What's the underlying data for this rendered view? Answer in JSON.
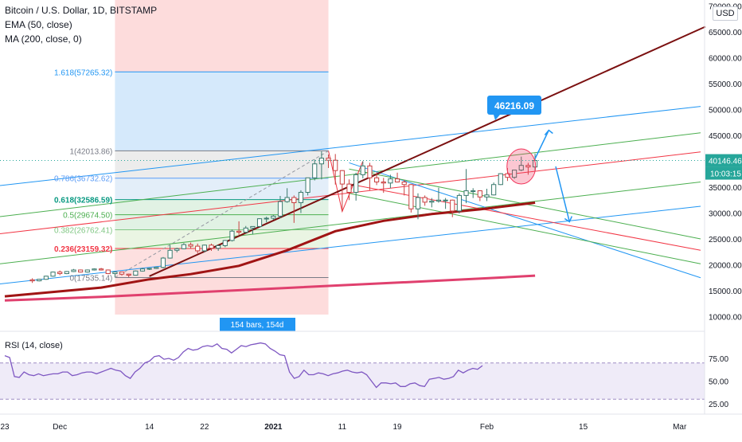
{
  "header": {
    "symbol_title": "Bitcoin / U.S. Dollar, 1D, BITSTAMP",
    "ema_label": "EMA (50, close)",
    "ma_label": "MA (200, close, 0)",
    "currency": "USD"
  },
  "price_axis": {
    "ticks": [
      "70000.00",
      "65000.00",
      "60000.00",
      "55000.00",
      "50000.00",
      "45000.00",
      "40000.00",
      "35000.00",
      "30000.00",
      "25000.00",
      "20000.00",
      "15000.00",
      "10000.00"
    ],
    "current_price": "40146.46",
    "countdown": "10:03:15"
  },
  "time_axis": {
    "ticks": [
      "23",
      "Dec",
      "14",
      "22",
      "2021",
      "11",
      "19",
      "Feb",
      "15",
      "Mar"
    ]
  },
  "fib_levels": [
    {
      "label": "1.618(57265.32)",
      "color": "#2196f3"
    },
    {
      "label": "1(42013.86)",
      "color": "#787b86"
    },
    {
      "label": "0.786(36732.62)",
      "color": "#5b9cf6"
    },
    {
      "label": "0.618(32586.59)",
      "color": "#089981"
    },
    {
      "label": "0.5(29674.50)",
      "color": "#4caf50"
    },
    {
      "label": "0.382(26762.41)",
      "color": "#81c784"
    },
    {
      "label": "0.236(23159.32)",
      "color": "#f23645"
    },
    {
      "label": "0(17535.14)",
      "color": "#787b86"
    }
  ],
  "annotations": {
    "target_label": "46216.09",
    "bars_label": "154 bars, 154d"
  },
  "rsi": {
    "label": "RSI (14, close)",
    "ticks": [
      "75.00",
      "50.00",
      "25.00"
    ],
    "values": [
      78,
      76,
      55,
      54,
      60,
      57,
      56,
      58,
      56,
      57,
      58,
      58,
      60,
      60,
      56,
      57,
      59,
      60,
      60,
      58,
      60,
      62,
      64,
      62,
      61,
      56,
      53,
      60,
      64,
      70,
      72,
      77,
      78,
      74,
      75,
      73,
      76,
      82,
      86,
      84,
      85,
      88,
      89,
      88,
      91,
      86,
      85,
      81,
      85,
      89,
      88,
      90,
      91,
      92,
      91,
      86,
      83,
      79,
      78,
      60,
      53,
      55,
      62,
      57,
      57,
      59,
      58,
      56,
      58,
      59,
      61,
      62,
      60,
      59,
      60,
      57,
      50,
      43,
      48,
      48,
      47,
      48,
      44,
      44,
      47,
      48,
      45,
      44,
      52,
      53,
      54,
      52,
      53,
      55,
      62,
      59,
      62,
      64,
      63,
      67
    ]
  },
  "chart_data": {
    "type": "candlestick",
    "title": "Bitcoin / U.S. Dollar, 1D, BITSTAMP",
    "x_range": [
      "2020-11-23",
      "2021-03-07"
    ],
    "ylim": [
      8000,
      70000
    ],
    "candles": [
      {
        "date": "2020-11-27",
        "o": 17100,
        "h": 17400,
        "l": 16500,
        "c": 16900
      },
      {
        "date": "2020-11-28",
        "o": 16900,
        "h": 17300,
        "l": 16800,
        "c": 17200
      },
      {
        "date": "2020-11-29",
        "o": 17200,
        "h": 17900,
        "l": 17100,
        "c": 17800
      },
      {
        "date": "2020-11-30",
        "o": 17800,
        "h": 18700,
        "l": 17700,
        "c": 18600
      },
      {
        "date": "2020-12-01",
        "o": 18600,
        "h": 18900,
        "l": 18000,
        "c": 18300
      },
      {
        "date": "2020-12-02",
        "o": 18300,
        "h": 18800,
        "l": 18200,
        "c": 18700
      },
      {
        "date": "2020-12-03",
        "o": 18700,
        "h": 19200,
        "l": 18600,
        "c": 19000
      },
      {
        "date": "2020-12-04",
        "o": 19000,
        "h": 19100,
        "l": 18500,
        "c": 18600
      },
      {
        "date": "2020-12-05",
        "o": 18600,
        "h": 19100,
        "l": 18500,
        "c": 19000
      },
      {
        "date": "2020-12-06",
        "o": 19000,
        "h": 19300,
        "l": 18900,
        "c": 19200
      },
      {
        "date": "2020-12-07",
        "o": 19200,
        "h": 19400,
        "l": 18900,
        "c": 19000
      },
      {
        "date": "2020-12-08",
        "o": 19000,
        "h": 19100,
        "l": 18200,
        "c": 18300
      },
      {
        "date": "2020-12-09",
        "o": 18300,
        "h": 18700,
        "l": 17600,
        "c": 18600
      },
      {
        "date": "2020-12-10",
        "o": 18600,
        "h": 18600,
        "l": 17900,
        "c": 18200
      },
      {
        "date": "2020-12-11",
        "o": 18200,
        "h": 18300,
        "l": 17600,
        "c": 18000
      },
      {
        "date": "2020-12-12",
        "o": 18000,
        "h": 18900,
        "l": 18000,
        "c": 18800
      },
      {
        "date": "2020-12-13",
        "o": 18800,
        "h": 19400,
        "l": 18700,
        "c": 19200
      },
      {
        "date": "2020-12-14",
        "o": 19200,
        "h": 19400,
        "l": 19000,
        "c": 19300
      },
      {
        "date": "2020-12-15",
        "o": 19300,
        "h": 19600,
        "l": 19200,
        "c": 19500
      },
      {
        "date": "2020-12-16",
        "o": 19500,
        "h": 21500,
        "l": 19300,
        "c": 21300
      },
      {
        "date": "2020-12-17",
        "o": 21300,
        "h": 23800,
        "l": 21200,
        "c": 22800
      },
      {
        "date": "2020-12-18",
        "o": 22800,
        "h": 23300,
        "l": 22400,
        "c": 23100
      },
      {
        "date": "2020-12-19",
        "o": 23100,
        "h": 24200,
        "l": 23000,
        "c": 23900
      },
      {
        "date": "2020-12-20",
        "o": 23900,
        "h": 24300,
        "l": 23100,
        "c": 23600
      },
      {
        "date": "2020-12-21",
        "o": 23600,
        "h": 24100,
        "l": 22200,
        "c": 22700
      },
      {
        "date": "2020-12-22",
        "o": 22700,
        "h": 23900,
        "l": 22400,
        "c": 23800
      },
      {
        "date": "2020-12-23",
        "o": 23800,
        "h": 24100,
        "l": 22700,
        "c": 23200
      },
      {
        "date": "2020-12-24",
        "o": 23200,
        "h": 23800,
        "l": 22700,
        "c": 23700
      },
      {
        "date": "2020-12-25",
        "o": 23700,
        "h": 24800,
        "l": 23400,
        "c": 24700
      },
      {
        "date": "2020-12-26",
        "o": 24700,
        "h": 26800,
        "l": 24500,
        "c": 26500
      },
      {
        "date": "2020-12-27",
        "o": 26500,
        "h": 28400,
        "l": 25800,
        "c": 26300
      },
      {
        "date": "2020-12-28",
        "o": 26300,
        "h": 27500,
        "l": 26100,
        "c": 27100
      },
      {
        "date": "2020-12-29",
        "o": 27100,
        "h": 27400,
        "l": 25900,
        "c": 27400
      },
      {
        "date": "2020-12-30",
        "o": 27400,
        "h": 29000,
        "l": 27300,
        "c": 28900
      },
      {
        "date": "2020-12-31",
        "o": 28900,
        "h": 29300,
        "l": 28200,
        "c": 29000
      },
      {
        "date": "2021-01-01",
        "o": 29000,
        "h": 29600,
        "l": 28700,
        "c": 29400
      },
      {
        "date": "2021-01-02",
        "o": 29400,
        "h": 33300,
        "l": 29000,
        "c": 32200
      },
      {
        "date": "2021-01-03",
        "o": 32200,
        "h": 34800,
        "l": 32000,
        "c": 33000
      },
      {
        "date": "2021-01-04",
        "o": 33000,
        "h": 33400,
        "l": 28100,
        "c": 32000
      },
      {
        "date": "2021-01-05",
        "o": 32000,
        "h": 34400,
        "l": 30000,
        "c": 34000
      },
      {
        "date": "2021-01-06",
        "o": 34000,
        "h": 36800,
        "l": 33400,
        "c": 36800
      },
      {
        "date": "2021-01-07",
        "o": 36800,
        "h": 40300,
        "l": 36300,
        "c": 39500
      },
      {
        "date": "2021-01-08",
        "o": 39500,
        "h": 41900,
        "l": 36500,
        "c": 40600
      },
      {
        "date": "2021-01-09",
        "o": 40600,
        "h": 41300,
        "l": 38700,
        "c": 40200
      },
      {
        "date": "2021-01-10",
        "o": 40200,
        "h": 41400,
        "l": 35500,
        "c": 38200
      },
      {
        "date": "2021-01-11",
        "o": 38200,
        "h": 38300,
        "l": 30300,
        "c": 35600
      },
      {
        "date": "2021-01-12",
        "o": 35600,
        "h": 36500,
        "l": 32500,
        "c": 34000
      },
      {
        "date": "2021-01-13",
        "o": 34000,
        "h": 37800,
        "l": 32400,
        "c": 37400
      },
      {
        "date": "2021-01-14",
        "o": 37400,
        "h": 40000,
        "l": 36700,
        "c": 39100
      },
      {
        "date": "2021-01-15",
        "o": 39100,
        "h": 39700,
        "l": 34400,
        "c": 36800
      },
      {
        "date": "2021-01-16",
        "o": 36800,
        "h": 37900,
        "l": 35400,
        "c": 36000
      },
      {
        "date": "2021-01-17",
        "o": 36000,
        "h": 36800,
        "l": 33900,
        "c": 35800
      },
      {
        "date": "2021-01-18",
        "o": 35800,
        "h": 37400,
        "l": 34800,
        "c": 36600
      },
      {
        "date": "2021-01-19",
        "o": 36600,
        "h": 37800,
        "l": 35900,
        "c": 36000
      },
      {
        "date": "2021-01-20",
        "o": 36000,
        "h": 36400,
        "l": 33400,
        "c": 35500
      },
      {
        "date": "2021-01-21",
        "o": 35500,
        "h": 35600,
        "l": 30100,
        "c": 30800
      },
      {
        "date": "2021-01-22",
        "o": 30800,
        "h": 33800,
        "l": 28800,
        "c": 33000
      },
      {
        "date": "2021-01-23",
        "o": 33000,
        "h": 33400,
        "l": 31400,
        "c": 32100
      },
      {
        "date": "2021-01-24",
        "o": 32100,
        "h": 32900,
        "l": 31100,
        "c": 32300
      },
      {
        "date": "2021-01-25",
        "o": 32300,
        "h": 34900,
        "l": 32000,
        "c": 32500
      },
      {
        "date": "2021-01-26",
        "o": 32500,
        "h": 32900,
        "l": 30800,
        "c": 32500
      },
      {
        "date": "2021-01-27",
        "o": 32500,
        "h": 32600,
        "l": 29200,
        "c": 30400
      },
      {
        "date": "2021-01-28",
        "o": 30400,
        "h": 33800,
        "l": 29900,
        "c": 33400
      },
      {
        "date": "2021-01-29",
        "o": 33400,
        "h": 38500,
        "l": 31900,
        "c": 34300
      },
      {
        "date": "2021-01-30",
        "o": 34300,
        "h": 34800,
        "l": 32900,
        "c": 34300
      },
      {
        "date": "2021-01-31",
        "o": 34300,
        "h": 34400,
        "l": 32300,
        "c": 33100
      },
      {
        "date": "2021-02-01",
        "o": 33100,
        "h": 34700,
        "l": 32300,
        "c": 33500
      },
      {
        "date": "2021-02-02",
        "o": 33500,
        "h": 35900,
        "l": 33400,
        "c": 35500
      },
      {
        "date": "2021-02-03",
        "o": 35500,
        "h": 37700,
        "l": 35400,
        "c": 37600
      },
      {
        "date": "2021-02-04",
        "o": 37600,
        "h": 38700,
        "l": 36200,
        "c": 36900
      },
      {
        "date": "2021-02-05",
        "o": 36900,
        "h": 38300,
        "l": 36600,
        "c": 38300
      },
      {
        "date": "2021-02-06",
        "o": 38300,
        "h": 40900,
        "l": 38100,
        "c": 39200
      },
      {
        "date": "2021-02-07",
        "o": 39200,
        "h": 39700,
        "l": 37400,
        "c": 38900
      },
      {
        "date": "2021-02-08",
        "o": 38900,
        "h": 41500,
        "l": 38000,
        "c": 40146
      }
    ],
    "ema_50": [
      {
        "date": "2020-12-14",
        "v": 17200
      },
      {
        "date": "2020-12-20",
        "v": 18200
      },
      {
        "date": "2020-12-27",
        "v": 19800
      },
      {
        "date": "2021-01-03",
        "v": 22800
      },
      {
        "date": "2021-01-10",
        "v": 26500
      },
      {
        "date": "2021-01-17",
        "v": 28500
      },
      {
        "date": "2021-01-24",
        "v": 29800
      },
      {
        "date": "2021-01-31",
        "v": 30700
      },
      {
        "date": "2021-02-08",
        "v": 32000
      }
    ],
    "ma_200": [
      {
        "date": "2020-11-23",
        "v": 13100
      },
      {
        "date": "2020-12-07",
        "v": 13800
      },
      {
        "date": "2020-12-21",
        "v": 14700
      },
      {
        "date": "2021-01-04",
        "v": 15600
      },
      {
        "date": "2021-01-18",
        "v": 16500
      },
      {
        "date": "2021-02-01",
        "v": 17400
      },
      {
        "date": "2021-02-08",
        "v": 17900
      }
    ],
    "fibonacci": {
      "date_from": "2020-12-09",
      "date_to": "2021-01-09",
      "levels": [
        {
          "ratio": 1.618,
          "price": 57265.32
        },
        {
          "ratio": 1,
          "price": 42013.86
        },
        {
          "ratio": 0.786,
          "price": 36732.62
        },
        {
          "ratio": 0.618,
          "price": 32586.59
        },
        {
          "ratio": 0.5,
          "price": 29674.5
        },
        {
          "ratio": 0.382,
          "price": 26762.41
        },
        {
          "ratio": 0.236,
          "price": 23159.32
        },
        {
          "ratio": 0,
          "price": 17535.14
        }
      ]
    },
    "target_price": 46216.09,
    "last_price": 40146.46
  }
}
